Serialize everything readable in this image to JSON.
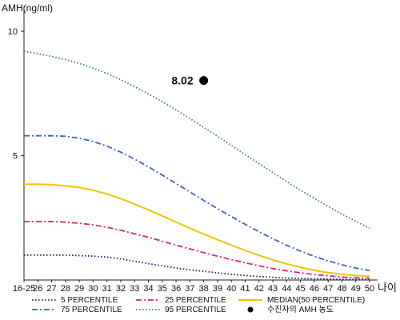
{
  "chart_data": {
    "type": "line",
    "ylabel": "AMH(ng/ml)",
    "xlabel": "나이",
    "categories": [
      "16-25",
      "26",
      "27",
      "28",
      "29",
      "30",
      "31",
      "32",
      "33",
      "34",
      "35",
      "36",
      "37",
      "38",
      "39",
      "40",
      "41",
      "42",
      "43",
      "44",
      "45",
      "46",
      "47",
      "48",
      "49",
      "50"
    ],
    "yticks": [
      "10",
      "5"
    ],
    "ytick_values": [
      10,
      5
    ],
    "ylim": [
      0,
      11
    ],
    "grid": false,
    "legend_position": "bottom",
    "series": [
      {
        "name": "5 PERCENTILE",
        "color": "#1a1f7a",
        "style": "dotted",
        "values": [
          1.0,
          1.0,
          1.0,
          1.0,
          0.98,
          0.96,
          0.92,
          0.85,
          0.75,
          0.66,
          0.57,
          0.48,
          0.41,
          0.35,
          0.29,
          0.23,
          0.18,
          0.14,
          0.11,
          0.08,
          0.06,
          0.05,
          0.04,
          0.03,
          0.02,
          0.02
        ]
      },
      {
        "name": "25 PERCENTILE",
        "color": "#e0207e",
        "style": "dashdot",
        "values": [
          2.35,
          2.35,
          2.35,
          2.33,
          2.28,
          2.22,
          2.12,
          2.0,
          1.86,
          1.72,
          1.56,
          1.4,
          1.25,
          1.1,
          0.96,
          0.82,
          0.69,
          0.57,
          0.46,
          0.37,
          0.29,
          0.22,
          0.17,
          0.12,
          0.09,
          0.07
        ]
      },
      {
        "name": "MEDIAN(50 PERCENTILE)",
        "color": "#f2c300",
        "style": "solid",
        "values": [
          3.85,
          3.85,
          3.83,
          3.79,
          3.72,
          3.61,
          3.46,
          3.27,
          3.05,
          2.82,
          2.58,
          2.33,
          2.08,
          1.85,
          1.62,
          1.4,
          1.19,
          0.99,
          0.81,
          0.65,
          0.51,
          0.39,
          0.3,
          0.23,
          0.18,
          0.15
        ]
      },
      {
        "name": "75 PERCENTILE",
        "color": "#3a62c9",
        "style": "dashdot",
        "values": [
          5.8,
          5.8,
          5.8,
          5.78,
          5.7,
          5.57,
          5.38,
          5.14,
          4.86,
          4.55,
          4.22,
          3.88,
          3.54,
          3.2,
          2.87,
          2.55,
          2.24,
          1.94,
          1.66,
          1.4,
          1.16,
          0.95,
          0.77,
          0.61,
          0.48,
          0.38
        ]
      },
      {
        "name": "95 PERCENTILE",
        "color": "#2e8b57",
        "style": "dotted",
        "values": [
          9.2,
          9.1,
          8.99,
          8.86,
          8.71,
          8.52,
          8.3,
          8.05,
          7.77,
          7.48,
          7.17,
          6.84,
          6.49,
          6.14,
          5.78,
          5.41,
          5.04,
          4.68,
          4.32,
          3.96,
          3.61,
          3.28,
          2.96,
          2.65,
          2.36,
          2.08
        ]
      }
    ],
    "marker": {
      "label": "수진자의 AMH 농도",
      "x": "38",
      "y": 8.02,
      "value_label": "8.02",
      "color": "#000000"
    }
  }
}
